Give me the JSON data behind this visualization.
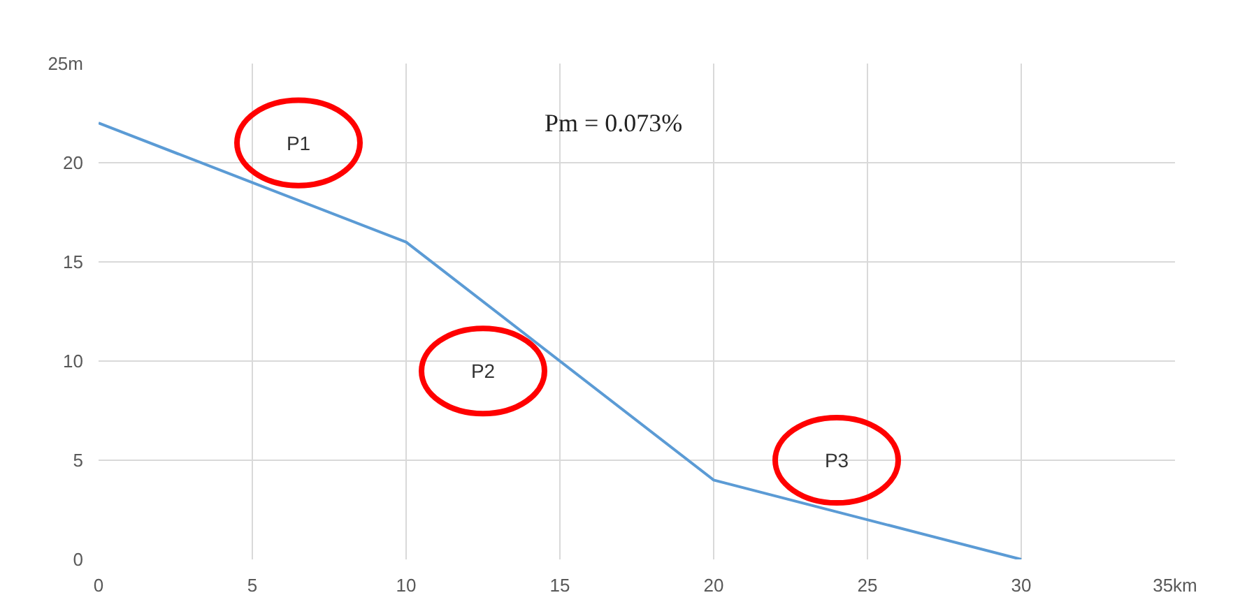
{
  "chart_data": {
    "type": "line",
    "x": [
      0,
      10,
      20,
      30
    ],
    "series": [
      {
        "color": "#5b9bd5",
        "values": [
          22,
          16,
          4,
          0
        ]
      }
    ],
    "xlim": [
      0,
      35
    ],
    "ylim": [
      0,
      25
    ],
    "xticks": [
      0,
      5,
      10,
      15,
      20,
      25,
      30,
      {
        "value": 35,
        "label": "35km"
      }
    ],
    "yticks": [
      0,
      5,
      10,
      15,
      20,
      {
        "value": 25,
        "label": "25m"
      }
    ],
    "grid": true,
    "marker": "none",
    "line_style": "solid",
    "annotations": [
      "P1",
      "P2",
      "P3",
      "Pm = 0.073%"
    ]
  }
}
